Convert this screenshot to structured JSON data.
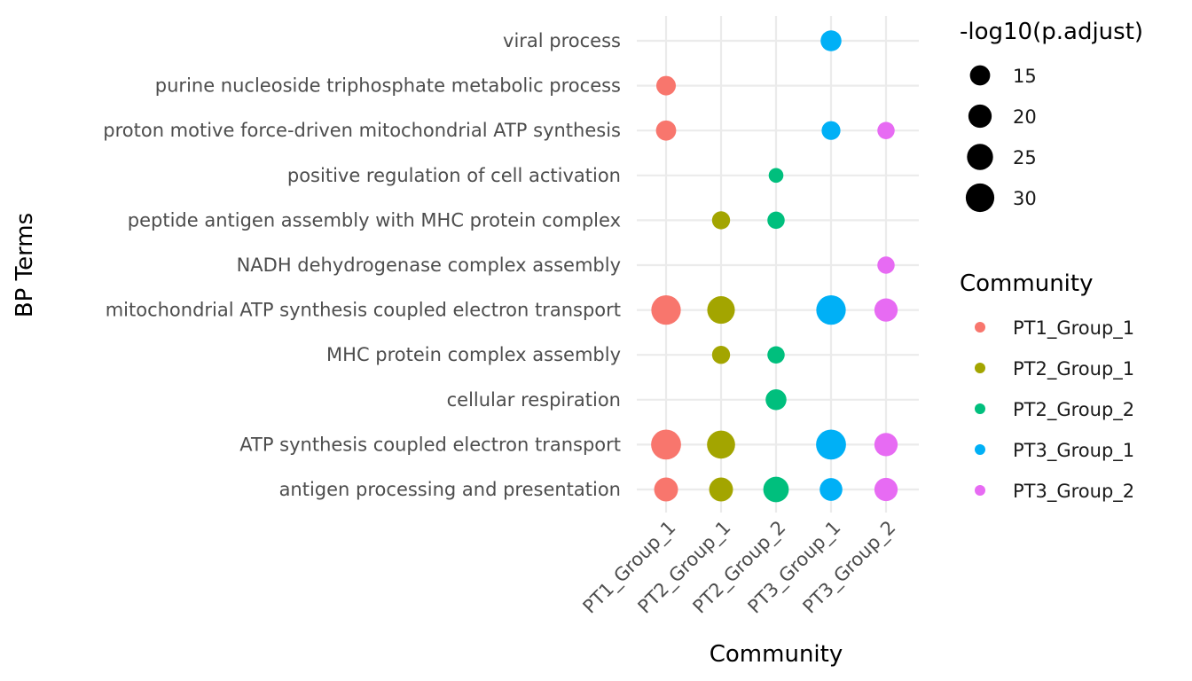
{
  "chart_data": {
    "type": "scatter",
    "xlabel": "Community",
    "ylabel": "BP Terms",
    "categories_x": [
      "PT1_Group_1",
      "PT2_Group_1",
      "PT2_Group_2",
      "PT3_Group_1",
      "PT3_Group_2"
    ],
    "categories_y": [
      "antigen processing and presentation",
      "ATP synthesis coupled electron transport",
      "cellular respiration",
      "MHC protein complex assembly",
      "mitochondrial ATP synthesis coupled electron transport",
      "NADH dehydrogenase complex assembly",
      "peptide antigen assembly with MHC protein complex",
      "positive regulation of cell activation",
      "proton motive force-driven mitochondrial ATP synthesis",
      "purine nucleoside triphosphate metabolic process",
      "viral process"
    ],
    "size_legend": {
      "title": "-log10(p.adjust)",
      "breaks": [
        15,
        20,
        25,
        30
      ],
      "labels": [
        "15",
        "20",
        "25",
        "30"
      ]
    },
    "color_legend": {
      "title": "Community",
      "items": [
        {
          "label": "PT1_Group_1",
          "color": "#F8766D"
        },
        {
          "label": "PT2_Group_1",
          "color": "#A3A500"
        },
        {
          "label": "PT2_Group_2",
          "color": "#00BF7D"
        },
        {
          "label": "PT3_Group_1",
          "color": "#00B0F6"
        },
        {
          "label": "PT3_Group_2",
          "color": "#E76BF3"
        }
      ]
    },
    "grid": true,
    "legend_position": "right",
    "points": [
      {
        "x": "PT3_Group_1",
        "y": "viral process",
        "size": 16
      },
      {
        "x": "PT1_Group_1",
        "y": "purine nucleoside triphosphate metabolic process",
        "size": 14
      },
      {
        "x": "PT1_Group_1",
        "y": "proton motive force-driven mitochondrial ATP synthesis",
        "size": 15
      },
      {
        "x": "PT3_Group_1",
        "y": "proton motive force-driven mitochondrial ATP synthesis",
        "size": 13
      },
      {
        "x": "PT3_Group_2",
        "y": "proton motive force-driven mitochondrial ATP synthesis",
        "size": 11
      },
      {
        "x": "PT2_Group_2",
        "y": "positive regulation of cell activation",
        "size": 8
      },
      {
        "x": "PT2_Group_1",
        "y": "peptide antigen assembly with MHC protein complex",
        "size": 12
      },
      {
        "x": "PT2_Group_2",
        "y": "peptide antigen assembly with MHC protein complex",
        "size": 11
      },
      {
        "x": "PT3_Group_2",
        "y": "NADH dehydrogenase complex assembly",
        "size": 11
      },
      {
        "x": "PT1_Group_1",
        "y": "mitochondrial ATP synthesis coupled electron transport",
        "size": 32
      },
      {
        "x": "PT2_Group_1",
        "y": "mitochondrial ATP synthesis coupled electron transport",
        "size": 28
      },
      {
        "x": "PT3_Group_1",
        "y": "mitochondrial ATP synthesis coupled electron transport",
        "size": 32
      },
      {
        "x": "PT3_Group_2",
        "y": "mitochondrial ATP synthesis coupled electron transport",
        "size": 20
      },
      {
        "x": "PT2_Group_1",
        "y": "MHC protein complex assembly",
        "size": 12
      },
      {
        "x": "PT2_Group_2",
        "y": "MHC protein complex assembly",
        "size": 11
      },
      {
        "x": "PT2_Group_2",
        "y": "cellular respiration",
        "size": 16
      },
      {
        "x": "PT1_Group_1",
        "y": "ATP synthesis coupled electron transport",
        "size": 33
      },
      {
        "x": "PT2_Group_1",
        "y": "ATP synthesis coupled electron transport",
        "size": 29
      },
      {
        "x": "PT3_Group_1",
        "y": "ATP synthesis coupled electron transport",
        "size": 33
      },
      {
        "x": "PT3_Group_2",
        "y": "ATP synthesis coupled electron transport",
        "size": 20
      },
      {
        "x": "PT1_Group_1",
        "y": "antigen processing and presentation",
        "size": 21
      },
      {
        "x": "PT2_Group_1",
        "y": "antigen processing and presentation",
        "size": 21
      },
      {
        "x": "PT2_Group_2",
        "y": "antigen processing and presentation",
        "size": 24
      },
      {
        "x": "PT3_Group_1",
        "y": "antigen processing and presentation",
        "size": 19
      },
      {
        "x": "PT3_Group_2",
        "y": "antigen processing and presentation",
        "size": 20
      }
    ]
  }
}
